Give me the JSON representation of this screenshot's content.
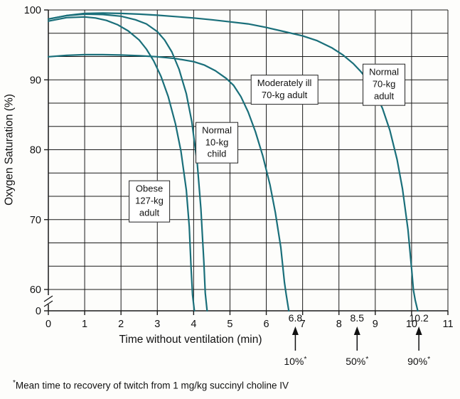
{
  "footnote": {
    "star": "*",
    "text": "Mean time to recovery of twitch from 1 mg/kg succinyl choline IV"
  },
  "chart_data": {
    "type": "line",
    "title": "",
    "xlabel": "Time without ventilation (min)",
    "ylabel": "Oxygen Saturation (%)",
    "xlim": [
      0,
      11
    ],
    "ylim_main": [
      60,
      100
    ],
    "y_axis_break": true,
    "y_zero_label": "0",
    "x_ticks": [
      0,
      1,
      2,
      3,
      4,
      5,
      6,
      7,
      8,
      9,
      10,
      11
    ],
    "y_ticks": [
      100,
      90,
      80,
      70,
      60
    ],
    "grid": true,
    "y_grid_divisions": 12,
    "line_color": "#1a6f7a",
    "axis_color": "#1a1a1a",
    "series": [
      {
        "name": "Normal 70-kg adult",
        "label_lines": [
          "Normal",
          "70-kg",
          "adult"
        ],
        "label_pos": {
          "x": 9.24,
          "y": 89.3
        },
        "points": [
          [
            0,
            98.7
          ],
          [
            0.5,
            99.2
          ],
          [
            1,
            99.5
          ],
          [
            1.5,
            99.55
          ],
          [
            2,
            99.5
          ],
          [
            2.5,
            99.4
          ],
          [
            3,
            99.25
          ],
          [
            3.5,
            99.05
          ],
          [
            4,
            98.85
          ],
          [
            4.5,
            98.6
          ],
          [
            5,
            98.3
          ],
          [
            5.5,
            98.0
          ],
          [
            6,
            97.5
          ],
          [
            6.5,
            96.9
          ],
          [
            7,
            96.3
          ],
          [
            7.4,
            95.6
          ],
          [
            7.8,
            94.6
          ],
          [
            8.1,
            93.6
          ],
          [
            8.4,
            92.3
          ],
          [
            8.6,
            91.2
          ],
          [
            8.8,
            89.9
          ],
          [
            9,
            88.2
          ],
          [
            9.2,
            85.9
          ],
          [
            9.4,
            82.8
          ],
          [
            9.6,
            78.6
          ],
          [
            9.75,
            74.4
          ],
          [
            9.9,
            68.6
          ],
          [
            10,
            63
          ],
          [
            10.05,
            58
          ],
          [
            10.1,
            30
          ],
          [
            10.17,
            0
          ]
        ]
      },
      {
        "name": "Moderately ill 70-kg adult",
        "label_lines": [
          "Moderately ill",
          "70-kg adult"
        ],
        "label_pos": {
          "x": 6.5,
          "y": 88.6
        },
        "points": [
          [
            0,
            93.3
          ],
          [
            0.5,
            93.5
          ],
          [
            1,
            93.6
          ],
          [
            1.5,
            93.6
          ],
          [
            2,
            93.55
          ],
          [
            2.5,
            93.45
          ],
          [
            3,
            93.3
          ],
          [
            3.5,
            93.05
          ],
          [
            4,
            92.6
          ],
          [
            4.3,
            92.1
          ],
          [
            4.6,
            91.3
          ],
          [
            4.9,
            90.2
          ],
          [
            5.1,
            89.2
          ],
          [
            5.3,
            87.6
          ],
          [
            5.5,
            85.4
          ],
          [
            5.7,
            82.6
          ],
          [
            5.9,
            79.2
          ],
          [
            6.1,
            75
          ],
          [
            6.25,
            71
          ],
          [
            6.4,
            66
          ],
          [
            6.5,
            61
          ],
          [
            6.55,
            45
          ],
          [
            6.62,
            0
          ]
        ]
      },
      {
        "name": "Normal 10-kg child",
        "label_lines": [
          "Normal",
          "10-kg",
          "child"
        ],
        "label_pos": {
          "x": 4.64,
          "y": 81
        },
        "points": [
          [
            0,
            98.7
          ],
          [
            0.5,
            99.2
          ],
          [
            1,
            99.4
          ],
          [
            1.5,
            99.35
          ],
          [
            2,
            99.1
          ],
          [
            2.4,
            98.6
          ],
          [
            2.7,
            98
          ],
          [
            3,
            96.9
          ],
          [
            3.2,
            95.7
          ],
          [
            3.4,
            94
          ],
          [
            3.6,
            91.5
          ],
          [
            3.8,
            88
          ],
          [
            3.95,
            84
          ],
          [
            4.1,
            78
          ],
          [
            4.2,
            71.5
          ],
          [
            4.28,
            64
          ],
          [
            4.32,
            50
          ],
          [
            4.37,
            0
          ]
        ]
      },
      {
        "name": "Obese 127-kg adult",
        "label_lines": [
          "Obese",
          "127-kg",
          "adult"
        ],
        "label_pos": {
          "x": 2.78,
          "y": 72.6
        },
        "points": [
          [
            0,
            98.4
          ],
          [
            0.5,
            98.9
          ],
          [
            1,
            99
          ],
          [
            1.3,
            98.85
          ],
          [
            1.6,
            98.5
          ],
          [
            1.9,
            97.9
          ],
          [
            2.2,
            97
          ],
          [
            2.5,
            95.7
          ],
          [
            2.7,
            94.4
          ],
          [
            2.9,
            92.7
          ],
          [
            3.1,
            90.5
          ],
          [
            3.3,
            87.6
          ],
          [
            3.5,
            83.7
          ],
          [
            3.65,
            79.8
          ],
          [
            3.8,
            74.2
          ],
          [
            3.88,
            69
          ],
          [
            3.93,
            63
          ],
          [
            3.97,
            45
          ],
          [
            4.02,
            0
          ]
        ]
      }
    ],
    "annotations": [
      {
        "time": 6.8,
        "value_label": "6.8",
        "pct_label": "10%",
        "star": "*"
      },
      {
        "time": 8.5,
        "value_label": "8.5",
        "pct_label": "50%",
        "star": "*"
      },
      {
        "time": 10.2,
        "value_label": "10.2",
        "pct_label": "90%",
        "star": "*"
      }
    ]
  }
}
